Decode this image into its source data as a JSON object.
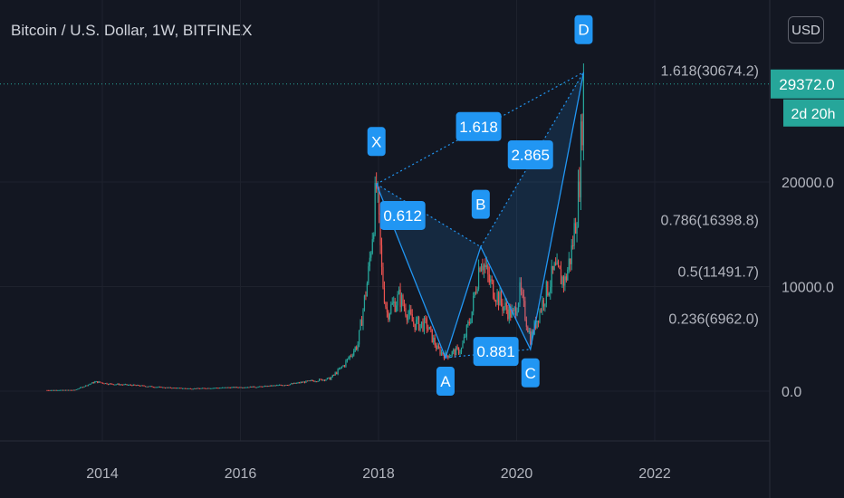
{
  "header": {
    "title": "Bitcoin / U.S. Dollar, 1W, BITFINEX",
    "currency_button": "USD"
  },
  "price_badge": {
    "value": "29372.0",
    "countdown": "2d 20h",
    "color": "#26a69a"
  },
  "colors": {
    "up": "#26a69a",
    "down": "#ef5350",
    "pattern": "#2196f3",
    "background": "#131722"
  },
  "chart_data": {
    "type": "candlestick",
    "x_axis": {
      "ticks": [
        "2014",
        "2016",
        "2018",
        "2020",
        "2022"
      ]
    },
    "y_axis": {
      "ticks": [
        "0.0",
        "10000.0",
        "20000.0"
      ]
    },
    "series_close": [
      [
        2013.2,
        100
      ],
      [
        2013.6,
        120
      ],
      [
        2013.9,
        900
      ],
      [
        2014.1,
        700
      ],
      [
        2014.5,
        550
      ],
      [
        2014.9,
        350
      ],
      [
        2015.3,
        250
      ],
      [
        2015.8,
        350
      ],
      [
        2016.3,
        430
      ],
      [
        2016.7,
        650
      ],
      [
        2017.0,
        950
      ],
      [
        2017.3,
        1200
      ],
      [
        2017.5,
        2500
      ],
      [
        2017.7,
        4500
      ],
      [
        2017.85,
        11000
      ],
      [
        2017.97,
        19500
      ],
      [
        2018.05,
        11000
      ],
      [
        2018.12,
        7500
      ],
      [
        2018.3,
        9000
      ],
      [
        2018.5,
        6500
      ],
      [
        2018.7,
        6300
      ],
      [
        2018.85,
        4000
      ],
      [
        2018.97,
        3400
      ],
      [
        2019.2,
        4000
      ],
      [
        2019.35,
        7500
      ],
      [
        2019.48,
        13000
      ],
      [
        2019.6,
        10500
      ],
      [
        2019.8,
        8200
      ],
      [
        2019.95,
        7200
      ],
      [
        2020.05,
        9500
      ],
      [
        2020.2,
        5000
      ],
      [
        2020.4,
        9000
      ],
      [
        2020.55,
        11500
      ],
      [
        2020.7,
        10500
      ],
      [
        2020.8,
        13500
      ],
      [
        2020.9,
        19000
      ],
      [
        2020.97,
        29372
      ]
    ],
    "harmonic_pattern": {
      "points": [
        {
          "label": "X",
          "x": 2017.97,
          "y": 19800
        },
        {
          "label": "A",
          "x": 2018.97,
          "y": 3200
        },
        {
          "label": "B",
          "x": 2019.48,
          "y": 13800
        },
        {
          "label": "C",
          "x": 2020.2,
          "y": 4000
        },
        {
          "label": "D",
          "x": 2020.97,
          "y": 30500
        }
      ],
      "ratios": [
        {
          "label": "0.612",
          "x": 2018.35,
          "y": 16800
        },
        {
          "label": "1.618",
          "x": 2019.45,
          "y": 25300
        },
        {
          "label": "2.865",
          "x": 2020.2,
          "y": 22600
        },
        {
          "label": "0.881",
          "x": 2019.7,
          "y": 3800
        }
      ]
    },
    "fib_levels": [
      {
        "label": "1.618(30674.2)",
        "value": 30674.2
      },
      {
        "label": "0.786(16398.8)",
        "value": 16398.8
      },
      {
        "label": "0.5(11491.7)",
        "value": 11491.7
      },
      {
        "label": "0.236(6962.0)",
        "value": 6962.0
      }
    ],
    "last_price": 29372.0
  }
}
